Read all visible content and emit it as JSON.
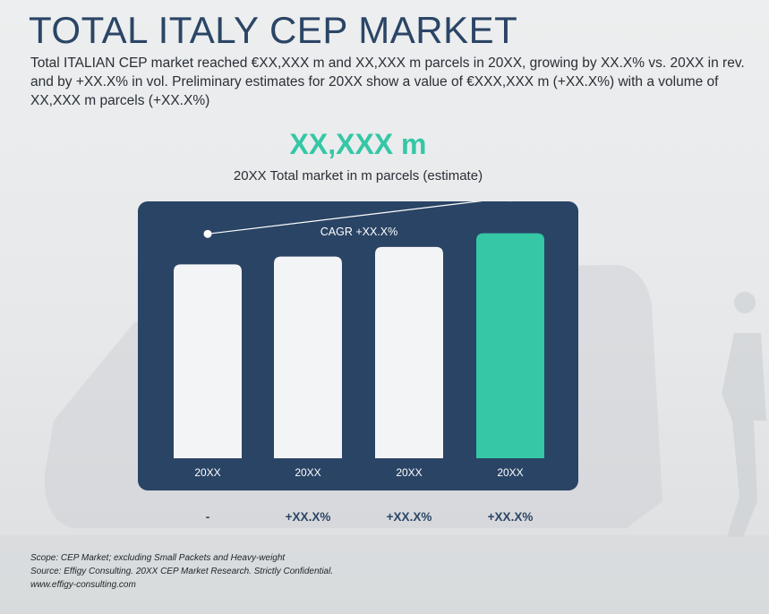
{
  "header": {
    "title": "TOTAL ITALY CEP MARKET",
    "summary": "Total ITALIAN CEP market reached €XX,XXX m and XX,XXX m parcels in 20XX, growing by XX.X% vs. 20XX in rev. and by +XX.X% in vol. Preliminary estimates for 20XX show a value of €XXX,XXX m (+XX.X%) with a volume of XX,XXX m parcels (+XX.X%)"
  },
  "kpi": {
    "value": "XX,XXX m",
    "caption": "20XX Total market in m parcels (estimate)"
  },
  "chart_data": {
    "type": "bar",
    "categories": [
      "20XX",
      "20XX",
      "20XX",
      "20XX"
    ],
    "values": [
      100,
      104,
      109,
      116
    ],
    "ylim": [
      0,
      120
    ],
    "cagr_label": "CAGR +XX.X%",
    "growth_labels": [
      "-",
      "+XX.X%",
      "+XX.X%",
      "+XX.X%"
    ],
    "grid": false,
    "colors": {
      "panel": "#2a4465",
      "bar": "#f3f4f6",
      "highlight_bar": "#35c7a6",
      "growth_text": "#2b4566"
    },
    "highlight_index": 3
  },
  "footer": {
    "scope": "Scope: CEP Market; excluding Small Packets and Heavy-weight",
    "source": "Source: Effigy Consulting. 20XX CEP Market Research. Strictly Confidential.",
    "website": "www.effigy-consulting.com"
  }
}
